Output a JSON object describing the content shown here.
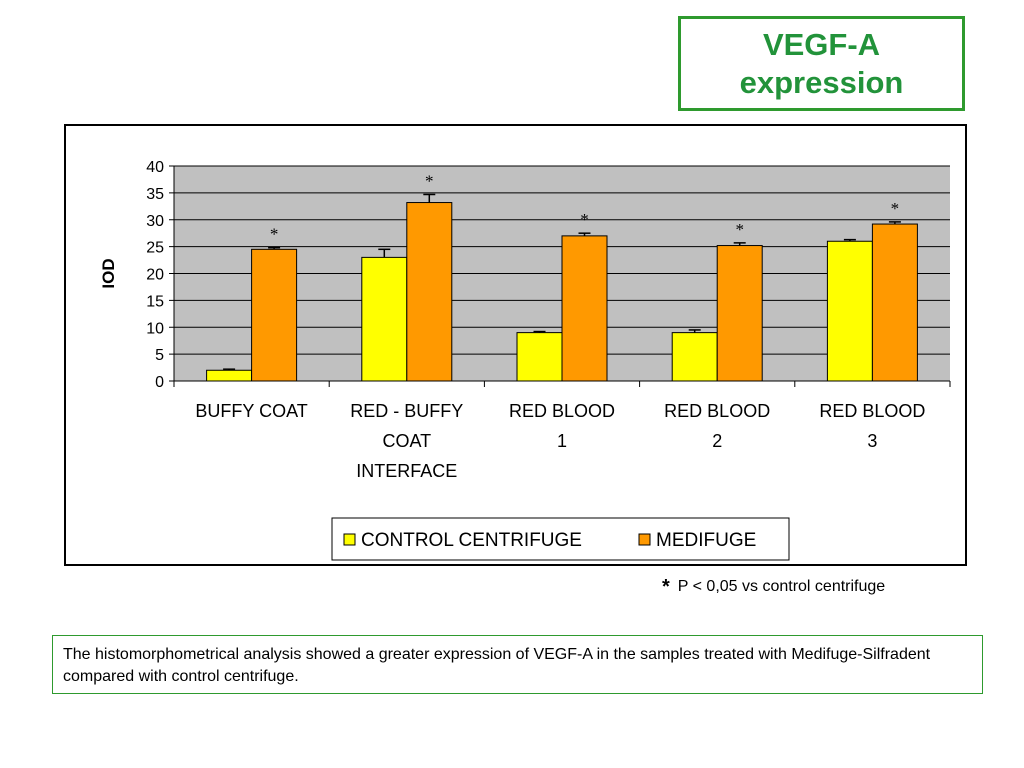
{
  "title": {
    "line1": "VEGF-A",
    "line2": "expression"
  },
  "chart_data": {
    "type": "bar",
    "ylabel": "IOD",
    "xlabel": "",
    "ylim": [
      0,
      40
    ],
    "yticks": [
      0,
      5,
      10,
      15,
      20,
      25,
      30,
      35,
      40
    ],
    "grid": true,
    "legend_position": "bottom",
    "categories": [
      [
        "BUFFY COAT"
      ],
      [
        "RED - BUFFY",
        "COAT",
        "INTERFACE"
      ],
      [
        "RED BLOOD",
        "1"
      ],
      [
        "RED BLOOD",
        "2"
      ],
      [
        "RED BLOOD",
        "3"
      ]
    ],
    "series": [
      {
        "name": "CONTROL CENTRIFUGE",
        "color": "#ffff00",
        "values": [
          2,
          23,
          9,
          9,
          26
        ],
        "errors": [
          0.2,
          1.5,
          0.2,
          0.5,
          0.3
        ]
      },
      {
        "name": "MEDIFUGE",
        "color": "#ff9900",
        "values": [
          24.5,
          33.2,
          27,
          25.2,
          29.2
        ],
        "errors": [
          0.3,
          1.5,
          0.5,
          0.5,
          0.4
        ]
      }
    ],
    "significance_marker": "*",
    "significant": [
      true,
      true,
      true,
      true,
      true
    ]
  },
  "footnote": {
    "symbol": "*",
    "text": "P < 0,05 vs control centrifuge"
  },
  "caption": "The histomorphometrical analysis showed a greater expression of VEGF-A in the samples treated with Medifuge-Silfradent compared with control centrifuge."
}
